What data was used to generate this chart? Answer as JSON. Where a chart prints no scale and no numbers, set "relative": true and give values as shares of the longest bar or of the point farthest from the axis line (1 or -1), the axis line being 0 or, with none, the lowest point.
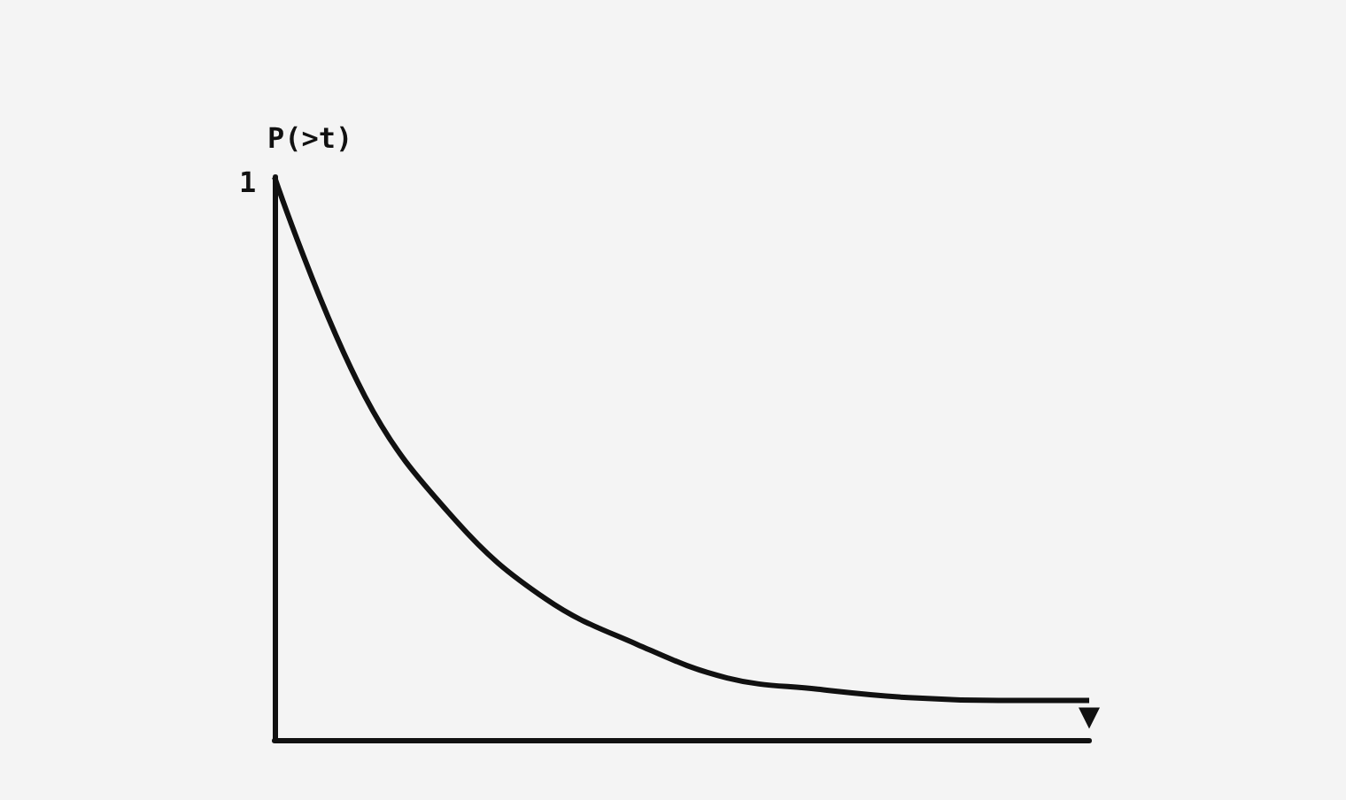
{
  "chart_data": {
    "type": "line",
    "relative": true,
    "ylabel": "P(>t)",
    "annotations": [
      "1"
    ],
    "categories": [
      null,
      null,
      null,
      null,
      null,
      null,
      null,
      null,
      null,
      null
    ],
    "series": [
      {
        "color": "#111111",
        "values": [
          1,
          0.61,
          0.39,
          0.25,
          0.17,
          0.11,
          0.09,
          0.075,
          0.07,
          0.07
        ]
      }
    ],
    "marker": "none",
    "line_style": "solid",
    "grid": false
  }
}
